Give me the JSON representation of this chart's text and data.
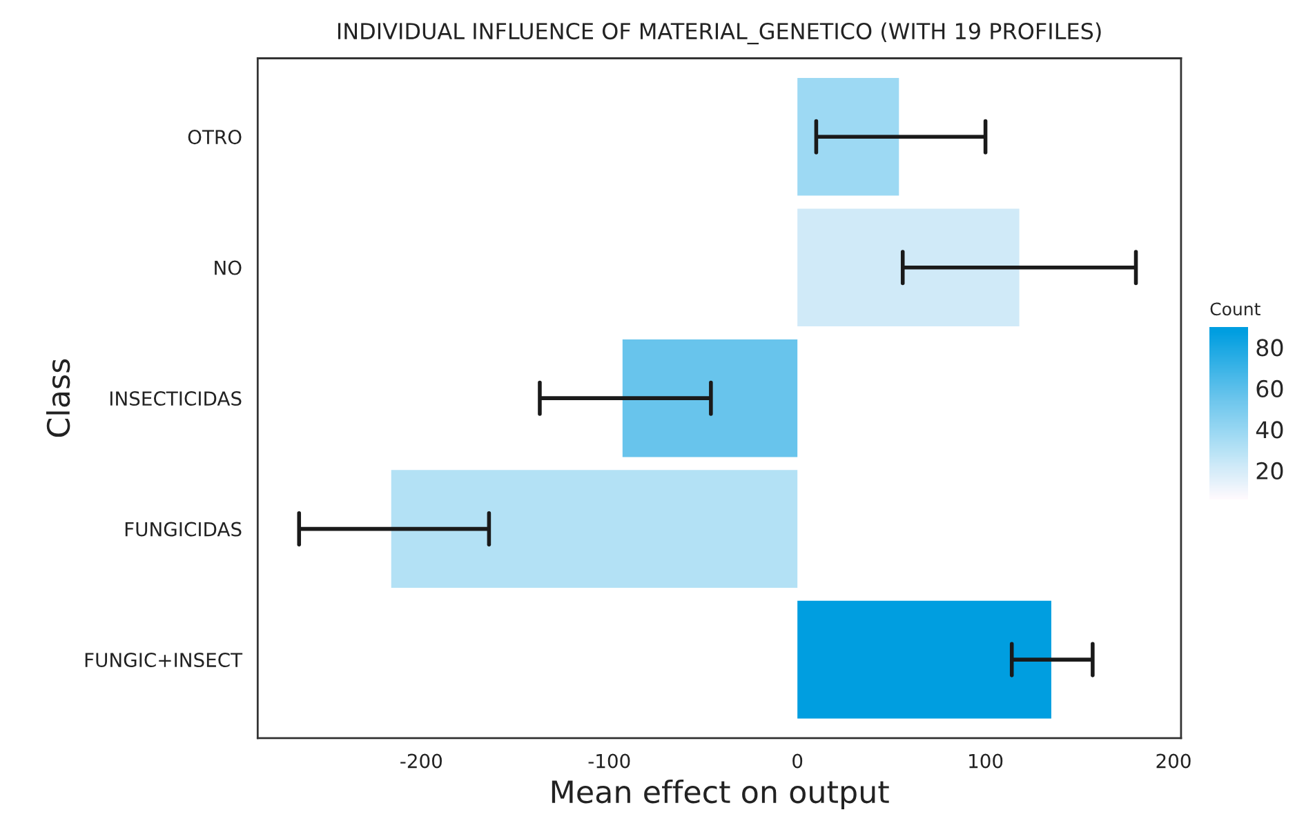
{
  "chart_data": {
    "type": "bar",
    "orientation": "horizontal",
    "title": "INDIVIDUAL INFLUENCE OF MATERIAL_GENETICO (WITH 19 PROFILES)",
    "xlabel": "Mean effect on output",
    "ylabel": "Class",
    "clabel": "Count",
    "categories": [
      "OTRO",
      "NO",
      "INSECTICIDAS",
      "FUNGICIDAS",
      "FUNGIC+INSECT"
    ],
    "values": [
      54,
      118,
      -93,
      -216,
      135
    ],
    "errors": [
      [
        10,
        100
      ],
      [
        56,
        180
      ],
      [
        -137,
        -46
      ],
      [
        -265,
        -164
      ],
      [
        114,
        157
      ]
    ],
    "colors": [
      "#9dd9f3",
      "#cfeaf8",
      "#68c4ec",
      "#b3e1f5",
      "#009ee0"
    ],
    "cvalues": [
      38,
      22,
      56,
      31,
      88
    ],
    "clim": [
      6,
      90
    ],
    "cticks": [
      20,
      40,
      60,
      80
    ],
    "xlim": [
      -287,
      204
    ],
    "xticks": [
      -200,
      -100,
      0,
      100,
      200
    ],
    "grid": false
  }
}
